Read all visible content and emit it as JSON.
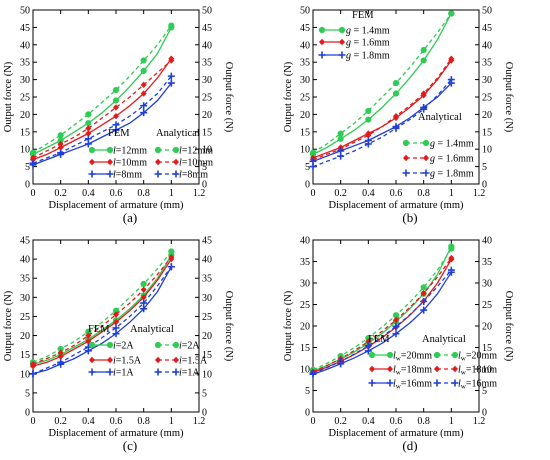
{
  "figure": {
    "panels": [
      "(a)",
      "(b)",
      "(c)",
      "(d)"
    ]
  },
  "colors": {
    "green": "#2ecc55",
    "red": "#e31a1c",
    "blue": "#1f3fd6"
  },
  "chart_data": [
    {
      "type": "line",
      "panel_label": "(a)",
      "xlabel": "Displacement of armature (mm)",
      "ylabel": "Output force (N)",
      "ylabel_right": "Output force (N)",
      "xlim": [
        0,
        1.2
      ],
      "ylim": [
        0,
        50
      ],
      "xticks": [
        "0",
        "0.2",
        "0.4",
        "0.6",
        "0.8",
        "1",
        "1.2"
      ],
      "yticks": [
        "0",
        "5",
        "10",
        "15",
        "20",
        "25",
        "30",
        "35",
        "40",
        "45",
        "50"
      ],
      "legend_headers": [
        "FEM",
        "Analytical"
      ],
      "legend_position": "middle-right",
      "legend_var": "l",
      "legend_rows": [
        {
          "fem": "=12mm",
          "ana": "=12mm",
          "color": "green"
        },
        {
          "fem": "=10mm",
          "ana": "=10mm",
          "color": "red"
        },
        {
          "fem": "=8mm",
          "ana": "=8mm",
          "color": "blue"
        }
      ],
      "x": [
        0,
        0.1,
        0.2,
        0.3,
        0.4,
        0.5,
        0.6,
        0.7,
        0.8,
        0.9,
        1.0
      ],
      "series": [
        {
          "method": "FEM",
          "color": "green",
          "marker": "circle",
          "values": [
            8.5,
            10.5,
            12.5,
            15,
            17.5,
            20.5,
            24,
            28,
            32.5,
            37.5,
            45
          ]
        },
        {
          "method": "Analytical",
          "color": "green",
          "marker": "circle",
          "values": [
            9,
            11.5,
            14,
            17,
            20,
            23.5,
            27,
            31,
            35.5,
            40,
            45.5
          ]
        },
        {
          "method": "FEM",
          "color": "red",
          "marker": "diamond",
          "values": [
            7,
            8.5,
            10.5,
            12.5,
            14.5,
            17,
            19.5,
            22.5,
            26,
            30.5,
            36
          ]
        },
        {
          "method": "Analytical",
          "color": "red",
          "marker": "diamond",
          "values": [
            7.5,
            9.5,
            11.5,
            13.5,
            16,
            19,
            22,
            25,
            28.5,
            32,
            35.5
          ]
        },
        {
          "method": "FEM",
          "color": "blue",
          "marker": "plus",
          "values": [
            5.5,
            7,
            8.5,
            10,
            11.5,
            13.5,
            15.5,
            17.5,
            20.5,
            24,
            29
          ]
        },
        {
          "method": "Analytical",
          "color": "blue",
          "marker": "plus",
          "values": [
            6,
            7.5,
            9,
            11,
            13,
            15,
            17,
            19.5,
            22.5,
            26,
            31
          ]
        }
      ]
    },
    {
      "type": "line",
      "panel_label": "(b)",
      "xlabel": "Displacement of armature (mm)",
      "ylabel": "Output force (N)",
      "ylabel_right": "Output force (N)",
      "xlim": [
        0,
        1.2
      ],
      "ylim": [
        0,
        50
      ],
      "xticks": [
        "0",
        "0.2",
        "0.4",
        "0.6",
        "0.8",
        "1",
        "1.2"
      ],
      "yticks": [
        "0",
        "5",
        "10",
        "15",
        "20",
        "25",
        "30",
        "35",
        "40",
        "45",
        "50"
      ],
      "legend_headers": [
        "FEM",
        "Analytical"
      ],
      "legend_position": "top-left / right",
      "legend_var": "g",
      "legend_rows": [
        {
          "fem": " = 1.4mm",
          "ana": " = 1.4mm",
          "color": "green"
        },
        {
          "fem": " = 1.6mm",
          "ana": " = 1.6mm",
          "color": "red"
        },
        {
          "fem": " = 1.8mm",
          "ana": " = 1.8mm",
          "color": "blue"
        }
      ],
      "x": [
        0,
        0.1,
        0.2,
        0.3,
        0.4,
        0.5,
        0.6,
        0.7,
        0.8,
        0.9,
        1.0
      ],
      "series": [
        {
          "method": "FEM",
          "color": "green",
          "marker": "circle",
          "values": [
            8.5,
            10.5,
            13,
            15.5,
            18.5,
            22,
            26,
            30.5,
            35.5,
            41.5,
            49
          ]
        },
        {
          "method": "Analytical",
          "color": "green",
          "marker": "circle",
          "values": [
            9,
            11.5,
            14.5,
            17.5,
            21,
            25,
            29,
            33.5,
            38.5,
            43.5,
            49
          ]
        },
        {
          "method": "FEM",
          "color": "red",
          "marker": "diamond",
          "values": [
            7.5,
            9,
            10.5,
            12.5,
            14.5,
            16.5,
            19,
            22,
            25.5,
            30,
            35.5
          ]
        },
        {
          "method": "Analytical",
          "color": "red",
          "marker": "diamond",
          "values": [
            7,
            8.5,
            10,
            12,
            14,
            16.5,
            19.5,
            22.5,
            26,
            30.5,
            36
          ]
        },
        {
          "method": "FEM",
          "color": "blue",
          "marker": "plus",
          "values": [
            6.5,
            8,
            9.5,
            11,
            12.5,
            14.5,
            16.5,
            19,
            22,
            25,
            29
          ]
        },
        {
          "method": "Analytical",
          "color": "blue",
          "marker": "plus",
          "values": [
            5,
            6.5,
            8,
            9.5,
            11.5,
            13.5,
            16,
            18.5,
            21.5,
            25.5,
            30
          ]
        }
      ]
    },
    {
      "type": "line",
      "panel_label": "(c)",
      "xlabel": "Displacement of armature (mm)",
      "ylabel": "Output force (N)",
      "ylabel_right": "Output force (N)",
      "xlim": [
        0,
        1.2
      ],
      "ylim": [
        0,
        45
      ],
      "xticks": [
        "0",
        "0.2",
        "0.4",
        "0.6",
        "0.8",
        "1",
        "1.2"
      ],
      "yticks": [
        "0",
        "5",
        "10",
        "15",
        "20",
        "25",
        "30",
        "35",
        "40",
        "45"
      ],
      "legend_headers": [
        "FEM",
        "Analytical"
      ],
      "legend_position": "lower-right",
      "legend_var": "i",
      "legend_rows": [
        {
          "fem": "=2A",
          "ana": "=2A",
          "color": "green"
        },
        {
          "fem": "=1.5A",
          "ana": "=1.5A",
          "color": "red"
        },
        {
          "fem": "=1A",
          "ana": "=1A",
          "color": "blue"
        }
      ],
      "x": [
        0,
        0.1,
        0.2,
        0.3,
        0.4,
        0.5,
        0.6,
        0.7,
        0.8,
        0.9,
        1.0
      ],
      "series": [
        {
          "method": "FEM",
          "color": "green",
          "marker": "circle",
          "values": [
            12.5,
            13.5,
            15,
            17,
            19,
            21.5,
            24,
            27,
            30.5,
            35,
            41
          ]
        },
        {
          "method": "Analytical",
          "color": "green",
          "marker": "circle",
          "values": [
            13,
            14.5,
            16.5,
            18.5,
            21,
            23.5,
            26.5,
            30,
            33.5,
            37.5,
            42
          ]
        },
        {
          "method": "FEM",
          "color": "red",
          "marker": "diamond",
          "values": [
            12,
            13,
            14.5,
            16.5,
            18.5,
            21,
            23.5,
            26.5,
            30,
            34.5,
            40
          ]
        },
        {
          "method": "Analytical",
          "color": "red",
          "marker": "diamond",
          "values": [
            12.5,
            14,
            15.5,
            17.5,
            20,
            22.5,
            25.5,
            28.5,
            32,
            36,
            40.5
          ]
        },
        {
          "method": "FEM",
          "color": "blue",
          "marker": "plus",
          "values": [
            10,
            11,
            12.5,
            14,
            16,
            18,
            20.5,
            23.5,
            27,
            31.5,
            38
          ]
        },
        {
          "method": "Analytical",
          "color": "blue",
          "marker": "plus",
          "values": [
            10,
            11.5,
            13,
            15,
            17,
            19.5,
            22,
            25,
            28.5,
            33,
            38
          ]
        }
      ]
    },
    {
      "type": "line",
      "panel_label": "(d)",
      "xlabel": "Displacement of armature (mm)",
      "ylabel": "Output force (N)",
      "ylabel_right": "Output force (N)",
      "xlim": [
        0,
        1.2
      ],
      "ylim": [
        0,
        40
      ],
      "xticks": [
        "0",
        "0.2",
        "0.4",
        "0.6",
        "0.8",
        "1",
        "1.2"
      ],
      "yticks": [
        "0",
        "5",
        "10",
        "15",
        "20",
        "25",
        "30",
        "35",
        "40"
      ],
      "legend_headers": [
        "FEM",
        "Analytical"
      ],
      "legend_position": "lower-right",
      "legend_var": "lw",
      "legend_rows": [
        {
          "fem": "=20mm",
          "ana": "=20mm",
          "color": "green"
        },
        {
          "fem": "=18mm",
          "ana": "=18mm",
          "color": "red"
        },
        {
          "fem": "=16mm",
          "ana": "=16mm",
          "color": "blue"
        }
      ],
      "x": [
        0,
        0.1,
        0.2,
        0.3,
        0.4,
        0.5,
        0.6,
        0.7,
        0.8,
        0.9,
        1.0
      ],
      "series": [
        {
          "method": "FEM",
          "color": "green",
          "marker": "circle",
          "values": [
            9.5,
            10.8,
            12.3,
            14,
            16,
            18.3,
            21,
            24,
            27.5,
            32,
            38.5
          ]
        },
        {
          "method": "Analytical",
          "color": "green",
          "marker": "circle",
          "values": [
            9.8,
            11.3,
            13,
            15,
            17.2,
            19.8,
            22.5,
            25.5,
            29,
            33,
            38
          ]
        },
        {
          "method": "FEM",
          "color": "red",
          "marker": "diamond",
          "values": [
            9.2,
            10.4,
            11.8,
            13.4,
            15.2,
            17.3,
            19.7,
            22.5,
            25.8,
            30,
            35.5
          ]
        },
        {
          "method": "Analytical",
          "color": "red",
          "marker": "diamond",
          "values": [
            9.4,
            10.8,
            12.4,
            14.3,
            16.4,
            18.8,
            21.4,
            24.3,
            27.6,
            31.4,
            35.8
          ]
        },
        {
          "method": "FEM",
          "color": "blue",
          "marker": "plus",
          "values": [
            8.8,
            9.9,
            11.2,
            12.6,
            14.2,
            16,
            18.2,
            20.7,
            23.7,
            27.5,
            32.5
          ]
        },
        {
          "method": "Analytical",
          "color": "blue",
          "marker": "plus",
          "values": [
            9,
            10.3,
            11.8,
            13.5,
            15.4,
            17.5,
            19.9,
            22.6,
            25.7,
            29.2,
            33
          ]
        }
      ]
    }
  ]
}
